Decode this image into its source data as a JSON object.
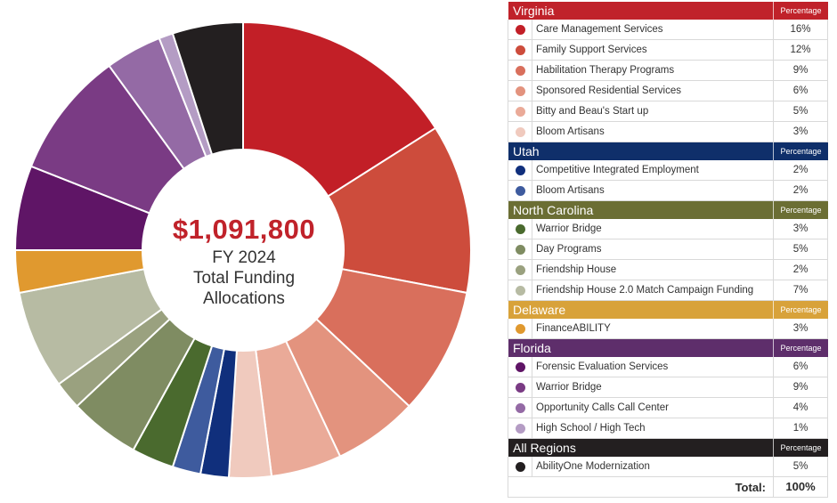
{
  "center": {
    "amount": "$1,091,800",
    "line1": "FY 2024",
    "line2": "Total Funding",
    "line3": "Allocations"
  },
  "pct_header": "Percentage",
  "total_label": "Total:",
  "total_value": "100%",
  "chart_data": {
    "type": "pie",
    "donut": true,
    "total": "$1,091,800",
    "groups": [
      {
        "region": "Virginia",
        "color": "#c0222a",
        "items": [
          {
            "label": "Care Management Services",
            "value": 16,
            "display": "16%",
            "color": "#c21f27"
          },
          {
            "label": "Family Support Services",
            "value": 12,
            "display": "12%",
            "color": "#cd4c3c"
          },
          {
            "label": "Habilitation Therapy Programs",
            "value": 9,
            "display": "9%",
            "color": "#d96f5c"
          },
          {
            "label": "Sponsored Residential Services",
            "value": 6,
            "display": "6%",
            "color": "#e3937e"
          },
          {
            "label": "Bitty and Beau's Start up",
            "value": 5,
            "display": "5%",
            "color": "#eaaa98"
          },
          {
            "label": "Bloom Artisans",
            "value": 3,
            "display": "3%",
            "color": "#f0cabe"
          }
        ]
      },
      {
        "region": "Utah",
        "color": "#0f2f6a",
        "items": [
          {
            "label": "Competitive Integrated Employment",
            "value": 2,
            "display": "2%",
            "color": "#102f7c"
          },
          {
            "label": "Bloom Artisans",
            "value": 2,
            "display": "2%",
            "color": "#3e5b9e"
          }
        ]
      },
      {
        "region": "North Carolina",
        "color": "#6b6e34",
        "items": [
          {
            "label": "Warrior Bridge",
            "value": 3,
            "display": "3%",
            "color": "#4a6a2e"
          },
          {
            "label": "Day Programs",
            "value": 5,
            "display": "5%",
            "color": "#7f8c62"
          },
          {
            "label": "Friendship House",
            "value": 2,
            "display": "2%",
            "color": "#9aa17f"
          },
          {
            "label": "Friendship House 2.0 Match Campaign Funding",
            "value": 7,
            "display": "7%",
            "color": "#b7bba3"
          }
        ]
      },
      {
        "region": "Delaware",
        "color": "#d8a23a",
        "items": [
          {
            "label": "FinanceABILITY",
            "value": 3,
            "display": "3%",
            "color": "#e0992f"
          }
        ]
      },
      {
        "region": "Florida",
        "color": "#5e2e6b",
        "items": [
          {
            "label": "Forensic Evaluation Services",
            "value": 6,
            "display": "6%",
            "color": "#5f1566"
          },
          {
            "label": "Warrior Bridge",
            "value": 9,
            "display": "9%",
            "color": "#7a3b84"
          },
          {
            "label": "Opportunity Calls Call Center",
            "value": 4,
            "display": "4%",
            "color": "#946aa5"
          },
          {
            "label": "High School / High Tech",
            "value": 1,
            "display": "1%",
            "color": "#b49cc4"
          }
        ]
      },
      {
        "region": "All Regions",
        "color": "#231f20",
        "items": [
          {
            "label": "AbilityOne Modernization",
            "value": 5,
            "display": "5%",
            "color": "#231f20"
          }
        ]
      }
    ]
  }
}
